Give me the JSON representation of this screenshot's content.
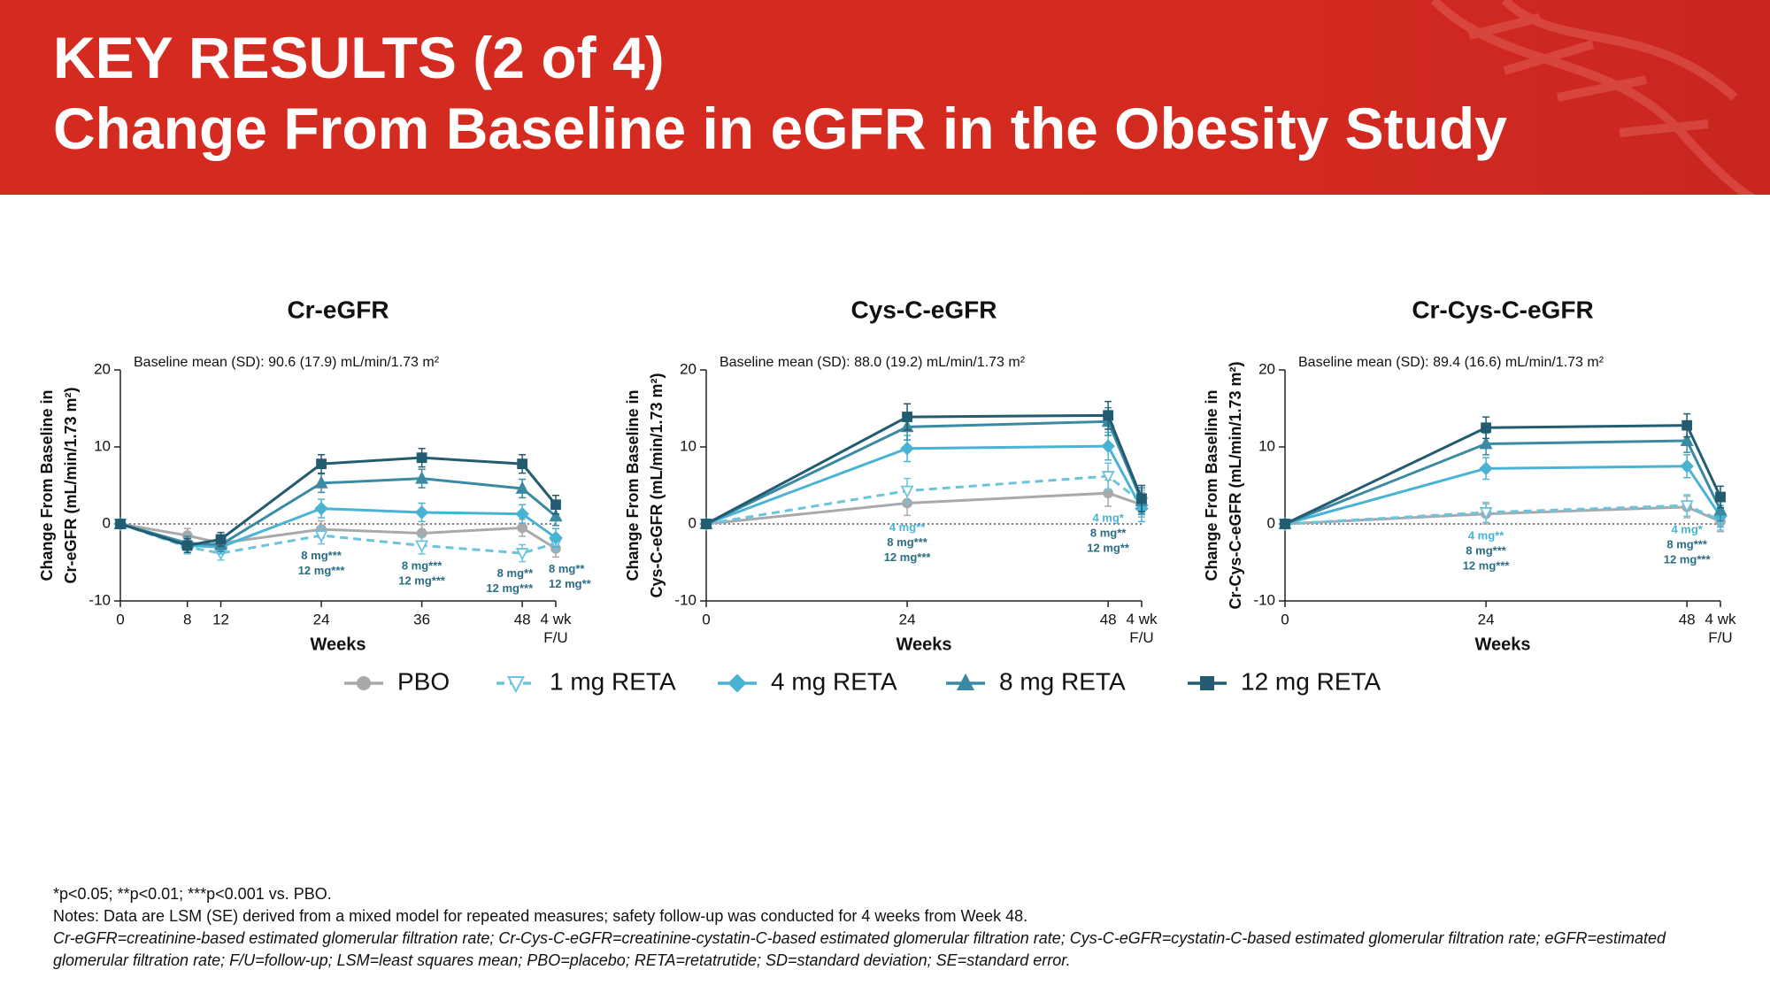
{
  "header": {
    "title_lines": [
      "KEY RESULTS (2 of 4)",
      "Change From Baseline in eGFR in the Obesity Study"
    ]
  },
  "chart_data": [
    {
      "type": "line",
      "title": "Cr-eGFR",
      "annotation_top": "Baseline mean (SD): 90.6 (17.9) mL/min/1.73 m²",
      "ylabel": [
        "Change From Baseline in",
        "Cr-eGFR (mL/min/1.73 m²)"
      ],
      "xlabel": "Weeks",
      "x": [
        0,
        8,
        12,
        24,
        36,
        48,
        52
      ],
      "xlim": [
        0,
        52
      ],
      "xticks": [
        0,
        8,
        12,
        24,
        36,
        48,
        {
          "value": 52,
          "label": "4 wk F/U"
        }
      ],
      "ylim": [
        -10,
        20
      ],
      "yticks": [
        -10,
        0,
        10,
        20
      ],
      "hline": 0,
      "series": [
        {
          "name": "PBO",
          "color": "#a7a9ab",
          "marker": "circle",
          "dashed": false,
          "values": [
            0,
            -1.5,
            -2.5,
            -0.7,
            -1.2,
            -0.5,
            -3.2
          ],
          "errors": [
            0,
            0.9,
            0.9,
            1.1,
            1.1,
            1.1,
            1.1
          ]
        },
        {
          "name": "1 mg RETA",
          "color": "#6cc4dc",
          "marker": "triangle-down",
          "dashed": true,
          "values": [
            0,
            -3.0,
            -3.8,
            -1.5,
            -2.8,
            -3.8,
            -2.5
          ],
          "errors": [
            0,
            0.9,
            0.9,
            1.1,
            1.1,
            1.1,
            1.1
          ]
        },
        {
          "name": "4 mg RETA",
          "color": "#4ab3d4",
          "marker": "diamond",
          "dashed": false,
          "values": [
            0,
            -2.8,
            -3.0,
            2.0,
            1.5,
            1.3,
            -1.8
          ],
          "errors": [
            0,
            0.9,
            0.9,
            1.2,
            1.2,
            1.2,
            1.2
          ]
        },
        {
          "name": "8 mg RETA",
          "color": "#3b8aa3",
          "marker": "triangle",
          "dashed": false,
          "values": [
            0,
            -2.5,
            -2.7,
            5.3,
            5.9,
            4.6,
            1.0
          ],
          "errors": [
            0,
            0.9,
            0.9,
            1.2,
            1.2,
            1.2,
            1.2
          ]
        },
        {
          "name": "12 mg RETA",
          "color": "#235c70",
          "marker": "square",
          "dashed": false,
          "values": [
            0,
            -2.8,
            -2.0,
            7.8,
            8.6,
            7.8,
            2.5
          ],
          "errors": [
            0,
            0.9,
            0.9,
            1.2,
            1.2,
            1.2,
            1.2
          ]
        }
      ],
      "annotations": [
        {
          "x": 24,
          "lines": [
            "8 mg***",
            "12 mg***"
          ]
        },
        {
          "x": 36,
          "lines": [
            "8 mg***",
            "12 mg***"
          ]
        },
        {
          "x": 48,
          "lines": [
            "8 mg**",
            "12 mg***"
          ]
        },
        {
          "x": 52,
          "lines": [
            "8 mg**",
            "12 mg**"
          ]
        }
      ]
    },
    {
      "type": "line",
      "title": "Cys-C-eGFR",
      "annotation_top": "Baseline mean (SD): 88.0 (19.2) mL/min/1.73 m²",
      "ylabel": [
        "Change From Baseline in",
        "Cys-C-eGFR (mL/min/1.73 m²)"
      ],
      "xlabel": "Weeks",
      "x": [
        0,
        24,
        48,
        52
      ],
      "xlim": [
        0,
        52
      ],
      "xticks": [
        0,
        24,
        48,
        {
          "value": 52,
          "label": "4 wk F/U"
        }
      ],
      "ylim": [
        -10,
        20
      ],
      "yticks": [
        -10,
        0,
        10,
        20
      ],
      "hline": 0,
      "series": [
        {
          "color": "#a7a9ab",
          "marker": "circle",
          "dashed": false,
          "values": [
            0,
            2.7,
            4.0,
            2.5
          ],
          "errors": [
            0,
            1.6,
            1.7,
            1.6
          ]
        },
        {
          "color": "#6cc4dc",
          "marker": "triangle-down",
          "dashed": true,
          "values": [
            0,
            4.3,
            6.2,
            2.8
          ],
          "errors": [
            0,
            1.6,
            1.7,
            1.6
          ]
        },
        {
          "color": "#4ab3d4",
          "marker": "diamond",
          "dashed": false,
          "values": [
            0,
            9.8,
            10.1,
            2.0
          ],
          "errors": [
            0,
            1.7,
            1.8,
            1.7
          ]
        },
        {
          "color": "#3b8aa3",
          "marker": "triangle",
          "dashed": false,
          "values": [
            0,
            12.6,
            13.3,
            3.0
          ],
          "errors": [
            0,
            1.7,
            1.8,
            1.7
          ]
        },
        {
          "color": "#235c70",
          "marker": "square",
          "dashed": false,
          "values": [
            0,
            13.9,
            14.1,
            3.3
          ],
          "errors": [
            0,
            1.7,
            1.8,
            1.7
          ]
        }
      ],
      "annotations": [
        {
          "x": 24,
          "lines": [
            "4 mg**",
            "8 mg***",
            "12 mg***"
          ]
        },
        {
          "x": 48,
          "lines": [
            "4 mg*",
            "8 mg**",
            "12 mg**"
          ]
        }
      ]
    },
    {
      "type": "line",
      "title": "Cr-Cys-C-eGFR",
      "annotation_top": "Baseline mean (SD): 89.4 (16.6) mL/min/1.73 m²",
      "ylabel": [
        "Change From Baseline in",
        "Cr-Cys-C-eGFR (mL/min/1.73 m²)"
      ],
      "xlabel": "Weeks",
      "x": [
        0,
        24,
        48,
        52
      ],
      "xlim": [
        0,
        52
      ],
      "xticks": [
        0,
        24,
        48,
        {
          "value": 52,
          "label": "4 wk F/U"
        }
      ],
      "ylim": [
        -10,
        20
      ],
      "yticks": [
        -10,
        0,
        10,
        20
      ],
      "hline": 0,
      "series": [
        {
          "color": "#a7a9ab",
          "marker": "circle",
          "dashed": false,
          "values": [
            0,
            1.3,
            2.2,
            0.3
          ],
          "errors": [
            0,
            1.3,
            1.4,
            1.3
          ]
        },
        {
          "color": "#6cc4dc",
          "marker": "triangle-down",
          "dashed": true,
          "values": [
            0,
            1.5,
            2.4,
            0.5
          ],
          "errors": [
            0,
            1.3,
            1.4,
            1.3
          ]
        },
        {
          "color": "#4ab3d4",
          "marker": "diamond",
          "dashed": false,
          "values": [
            0,
            7.2,
            7.5,
            1.0
          ],
          "errors": [
            0,
            1.4,
            1.5,
            1.4
          ]
        },
        {
          "color": "#3b8aa3",
          "marker": "triangle",
          "dashed": false,
          "values": [
            0,
            10.4,
            10.8,
            1.8
          ],
          "errors": [
            0,
            1.4,
            1.5,
            1.4
          ]
        },
        {
          "color": "#235c70",
          "marker": "square",
          "dashed": false,
          "values": [
            0,
            12.5,
            12.8,
            3.5
          ],
          "errors": [
            0,
            1.4,
            1.5,
            1.4
          ]
        }
      ],
      "annotations": [
        {
          "x": 24,
          "lines": [
            "4 mg**",
            "8 mg***",
            "12 mg***"
          ]
        },
        {
          "x": 48,
          "lines": [
            "4 mg*",
            "8 mg***",
            "12 mg***"
          ]
        }
      ]
    }
  ],
  "footnotes": [
    "*p<0.05; **p<0.01; ***p<0.001 vs. PBO.",
    "Notes: Data are LSM (SE) derived from a mixed model for repeated measures; safety follow-up was conducted for 4 weeks from Week 48.",
    "Cr-eGFR=creatinine-based estimated glomerular filtration rate; Cr-Cys-C-eGFR=creatinine-cystatin-C-based estimated glomerular filtration rate; Cys-C-eGFR=cystatin-C-based estimated glomerular filtration rate; eGFR=estimated glomerular filtration rate; F/U=follow-up; LSM=least squares mean; PBO=placebo; RETA=retatrutide; SD=standard deviation; SE=standard error."
  ]
}
